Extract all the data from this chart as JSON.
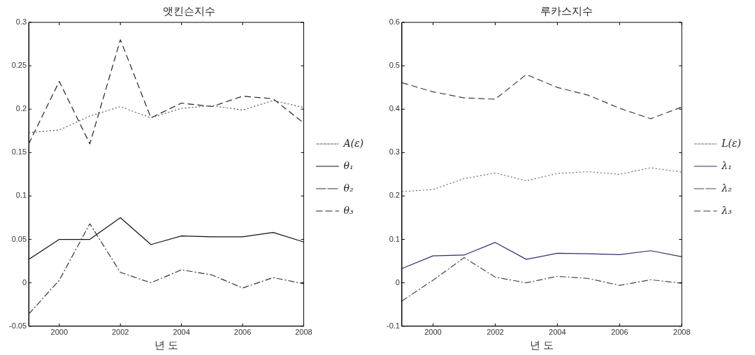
{
  "chart_data": [
    {
      "type": "line",
      "title": "앳킨슨지수",
      "xlabel": "년 도",
      "x": [
        1999,
        2000,
        2001,
        2002,
        2003,
        2004,
        2005,
        2006,
        2007,
        2008
      ],
      "xlim": [
        1999,
        2008
      ],
      "xticks": [
        2000,
        2002,
        2004,
        2006,
        2008
      ],
      "ylim": [
        -0.05,
        0.3
      ],
      "yticks": [
        -0.05,
        0,
        0.05,
        0.1,
        0.15,
        0.2,
        0.25,
        0.3
      ],
      "grid": false,
      "legend": "right",
      "marker": "none",
      "series": [
        {
          "name": "A(ε)",
          "color": "#555555",
          "line_style": "dotted",
          "values": [
            0.173,
            0.176,
            0.192,
            0.203,
            0.19,
            0.201,
            0.204,
            0.199,
            0.21,
            0.202
          ]
        },
        {
          "name": "θ₁",
          "color": "#111111",
          "line_style": "solid",
          "values": [
            0.027,
            0.05,
            0.05,
            0.075,
            0.044,
            0.054,
            0.053,
            0.053,
            0.058,
            0.047
          ]
        },
        {
          "name": "θ₂",
          "color": "#333333",
          "line_style": "dashdot",
          "values": [
            -0.036,
            0.003,
            0.068,
            0.012,
            0.0,
            0.015,
            0.009,
            -0.006,
            0.006,
            -0.001
          ]
        },
        {
          "name": "θ₃",
          "color": "#222222",
          "line_style": "dashed",
          "values": [
            0.16,
            0.232,
            0.16,
            0.28,
            0.19,
            0.207,
            0.203,
            0.215,
            0.212,
            0.184
          ]
        }
      ]
    },
    {
      "type": "line",
      "title": "루카스지수",
      "xlabel": "년 도",
      "x": [
        1999,
        2000,
        2001,
        2002,
        2003,
        2004,
        2005,
        2006,
        2007,
        2008
      ],
      "xlim": [
        1999,
        2008
      ],
      "xticks": [
        2000,
        2002,
        2004,
        2006,
        2008
      ],
      "ylim": [
        -0.1,
        0.6
      ],
      "yticks": [
        -0.1,
        0,
        0.1,
        0.2,
        0.3,
        0.4,
        0.5,
        0.6
      ],
      "grid": false,
      "legend": "right",
      "marker": "none",
      "series": [
        {
          "name": "L(ε)",
          "color": "#666677",
          "line_style": "dotted",
          "values": [
            0.21,
            0.215,
            0.24,
            0.253,
            0.235,
            0.252,
            0.256,
            0.25,
            0.265,
            0.255
          ]
        },
        {
          "name": "λ₁",
          "color": "#2e2e6e",
          "line_style": "solid",
          "values": [
            0.033,
            0.062,
            0.064,
            0.093,
            0.054,
            0.068,
            0.067,
            0.065,
            0.074,
            0.06
          ]
        },
        {
          "name": "λ₂",
          "color": "#444466",
          "line_style": "dashdot",
          "values": [
            -0.042,
            0.006,
            0.058,
            0.013,
            0.0,
            0.015,
            0.01,
            -0.006,
            0.007,
            -0.001
          ]
        },
        {
          "name": "λ₃",
          "color": "#3a3a5a",
          "line_style": "dashed",
          "values": [
            0.461,
            0.44,
            0.426,
            0.423,
            0.48,
            0.45,
            0.432,
            0.402,
            0.378,
            0.405
          ]
        }
      ]
    }
  ]
}
